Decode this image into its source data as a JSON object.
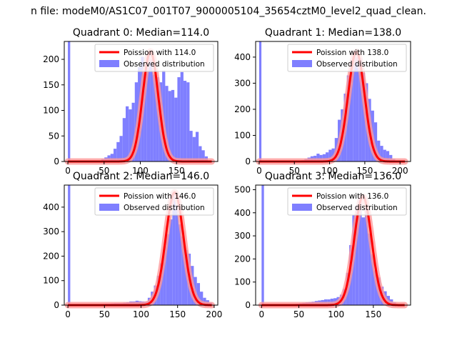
{
  "figure": {
    "suptitle": "n file: modeM0/AS1C07_001T07_9000005104_35654cztM0_level2_quad_clean."
  },
  "chart_data": [
    {
      "type": "bar",
      "title": "Quadrant 0: Median=114.0",
      "xlim": [
        -5,
        207
      ],
      "ylim": [
        0,
        235
      ],
      "xticks": [
        0,
        50,
        100,
        150
      ],
      "yticks": [
        0,
        50,
        100,
        150,
        200
      ],
      "median": 114.0,
      "bin_width": 4.2,
      "legend": {
        "line": "Poission with 114.0",
        "hist": "Observed distribution",
        "placement": "top-right"
      },
      "bins_x": [
        0,
        46.2,
        50.4,
        54.6,
        58.8,
        63,
        67.2,
        71.4,
        75.6,
        79.8,
        84,
        88.2,
        92.4,
        96.6,
        100.8,
        105,
        109.2,
        113.4,
        117.6,
        121.8,
        126,
        130.2,
        134.4,
        138.6,
        142.8,
        147,
        151.2,
        155.4,
        159.6,
        163.8,
        168,
        172.2,
        176.4,
        180.6,
        184.8,
        189
      ],
      "values": [
        235,
        5,
        8,
        12,
        15,
        25,
        38,
        50,
        85,
        108,
        102,
        115,
        155,
        185,
        205,
        172,
        215,
        200,
        170,
        165,
        155,
        178,
        148,
        138,
        140,
        125,
        165,
        175,
        158,
        155,
        60,
        48,
        58,
        30,
        22,
        10
      ]
    },
    {
      "type": "bar",
      "title": "Quadrant 1: Median=138.0",
      "xlim": [
        -5,
        215
      ],
      "ylim": [
        0,
        460
      ],
      "xticks": [
        0,
        50,
        100,
        150,
        200
      ],
      "yticks": [
        0,
        100,
        200,
        300,
        400
      ],
      "median": 138.0,
      "bin_width": 4.3,
      "legend": {
        "line": "Poission with 138.0",
        "hist": "Observed distribution",
        "placement": "top-right"
      },
      "bins_x": [
        0,
        60,
        64.3,
        68.6,
        72.9,
        77.2,
        81.5,
        85.8,
        90.1,
        94.4,
        98.7,
        103,
        107.3,
        111.6,
        115.9,
        120.2,
        124.5,
        128.8,
        133.1,
        137.4,
        141.7,
        146,
        150.3,
        154.6,
        158.9,
        163.2,
        167.5,
        171.8,
        176.1,
        180.4,
        184.7,
        189
      ],
      "values": [
        460,
        5,
        10,
        15,
        20,
        22,
        30,
        25,
        28,
        35,
        45,
        50,
        90,
        160,
        200,
        260,
        330,
        390,
        420,
        400,
        395,
        340,
        300,
        240,
        195,
        150,
        80,
        60,
        45,
        40,
        25,
        10
      ]
    },
    {
      "type": "bar",
      "title": "Quadrant 2: Median=146.0",
      "xlim": [
        -5,
        205
      ],
      "ylim": [
        0,
        490
      ],
      "xticks": [
        0,
        50,
        100,
        150,
        200
      ],
      "yticks": [
        0,
        100,
        200,
        300,
        400
      ],
      "median": 146.0,
      "bin_width": 4.2,
      "legend": {
        "line": "Poission with 146.0",
        "hist": "Observed distribution",
        "placement": "top-right"
      },
      "bins_x": [
        0,
        42,
        46.2,
        50.4,
        54.6,
        58.8,
        63,
        67.2,
        71.4,
        75.6,
        79.8,
        84,
        88.2,
        92.4,
        96.6,
        100.8,
        105,
        109.2,
        113.4,
        117.6,
        121.8,
        126,
        130.2,
        134.4,
        138.6,
        142.8,
        147,
        151.2,
        155.4,
        159.6,
        163.8,
        168,
        172.2,
        176.4,
        180.6,
        184.8,
        189,
        193.2
      ],
      "values": [
        490,
        4,
        5,
        6,
        6,
        7,
        8,
        8,
        8,
        10,
        12,
        15,
        15,
        18,
        16,
        15,
        14,
        30,
        55,
        80,
        120,
        170,
        240,
        290,
        350,
        460,
        410,
        330,
        280,
        225,
        210,
        160,
        115,
        90,
        55,
        30,
        20,
        10
      ]
    },
    {
      "type": "bar",
      "title": "Quadrant 3: Median=136.0",
      "xlim": [
        -8,
        200
      ],
      "ylim": [
        0,
        520
      ],
      "xticks": [
        0,
        50,
        100,
        150
      ],
      "yticks": [
        0,
        100,
        200,
        300,
        400,
        500
      ],
      "median": 136.0,
      "bin_width": 4.2,
      "legend": {
        "line": "Poission with 136.0",
        "hist": "Observed distribution",
        "placement": "top-right"
      },
      "bins_x": [
        0,
        42,
        46.2,
        50.4,
        54.6,
        58.8,
        63,
        67.2,
        71.4,
        75.6,
        79.8,
        84,
        88.2,
        92.4,
        96.6,
        100.8,
        105,
        109.2,
        113.4,
        117.6,
        121.8,
        126,
        130.2,
        134.4,
        138.6,
        142.8,
        147,
        151.2,
        155.4,
        159.6,
        163.8,
        168,
        172.2,
        176.4,
        180.6
      ],
      "values": [
        520,
        5,
        6,
        8,
        10,
        12,
        14,
        15,
        18,
        20,
        22,
        25,
        25,
        28,
        30,
        35,
        45,
        70,
        140,
        260,
        390,
        430,
        470,
        380,
        420,
        310,
        220,
        150,
        120,
        80,
        60,
        40,
        25,
        12,
        5
      ]
    }
  ],
  "colors": {
    "hist": "#7f7fff",
    "curve": "#ff0000",
    "curve_glow": "#ff9999",
    "axis": "#000000"
  }
}
